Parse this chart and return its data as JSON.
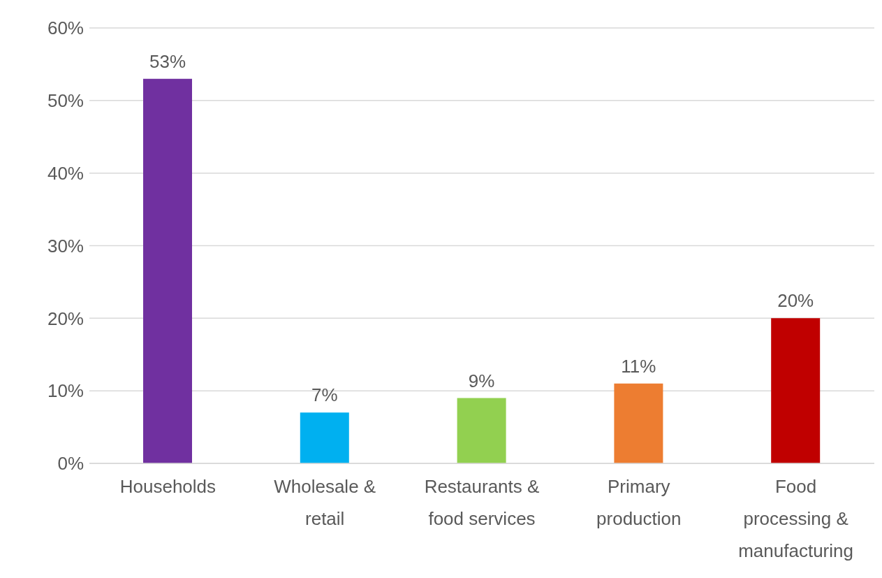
{
  "chart_data": {
    "type": "bar",
    "categories": [
      "Households",
      "Wholesale & retail",
      "Restaurants & food services",
      "Primary production",
      "Food processing & manufacturing"
    ],
    "values": [
      53,
      7,
      9,
      11,
      20
    ],
    "colors": [
      "#7030a0",
      "#00b0f0",
      "#92d050",
      "#ed7d31",
      "#c00000"
    ],
    "value_labels": [
      "53%",
      "7%",
      "9%",
      "11%",
      "20%"
    ],
    "ylim": [
      0,
      60
    ],
    "yticks": [
      {
        "value": 0,
        "label": "0%"
      },
      {
        "value": 10,
        "label": "10%"
      },
      {
        "value": 20,
        "label": "20%"
      },
      {
        "value": 30,
        "label": "30%"
      },
      {
        "value": 40,
        "label": "40%"
      },
      {
        "value": 50,
        "label": "50%"
      },
      {
        "value": 60,
        "label": "60%"
      }
    ],
    "grid": "y"
  }
}
